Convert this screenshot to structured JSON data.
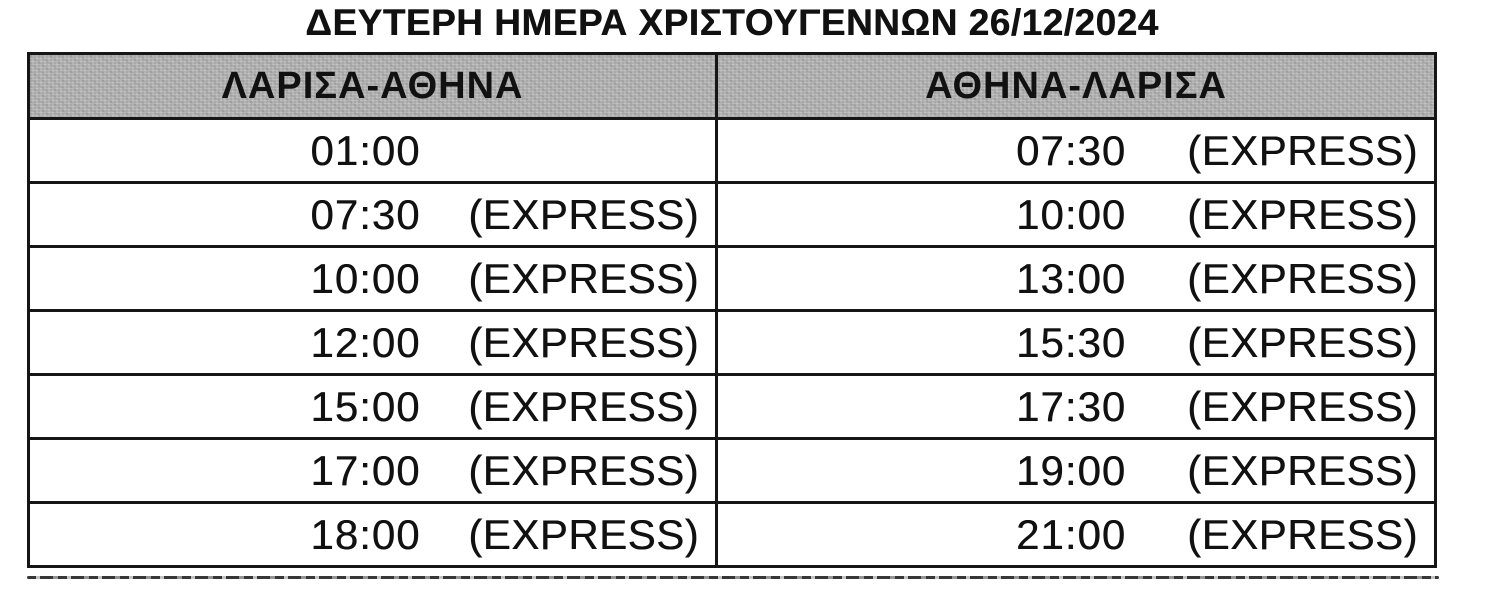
{
  "title": "ΔΕΥΤΕΡΗ ΗΜΕΡΑ ΧΡΙΣΤΟΥΓΕΝΝΩΝ 26/12/2024",
  "table": {
    "columns": [
      {
        "header": "ΛΑΡΙΣΑ-ΑΘΗΝΑ"
      },
      {
        "header": "ΑΘΗΝΑ-ΛΑΡΙΣΑ"
      }
    ],
    "rows": [
      {
        "cells": [
          {
            "time": "01:00",
            "note": ""
          },
          {
            "time": "07:30",
            "note": "(EXPRESS)"
          }
        ]
      },
      {
        "cells": [
          {
            "time": "07:30",
            "note": "(EXPRESS)"
          },
          {
            "time": "10:00",
            "note": "(EXPRESS)"
          }
        ]
      },
      {
        "cells": [
          {
            "time": "10:00",
            "note": "(EXPRESS)"
          },
          {
            "time": "13:00",
            "note": "(EXPRESS)"
          }
        ]
      },
      {
        "cells": [
          {
            "time": "12:00",
            "note": "(EXPRESS)"
          },
          {
            "time": "15:30",
            "note": "(EXPRESS)"
          }
        ]
      },
      {
        "cells": [
          {
            "time": "15:00",
            "note": "(EXPRESS)"
          },
          {
            "time": "17:30",
            "note": "(EXPRESS)"
          }
        ]
      },
      {
        "cells": [
          {
            "time": "17:00",
            "note": "(EXPRESS)"
          },
          {
            "time": "19:00",
            "note": "(EXPRESS)"
          }
        ]
      },
      {
        "cells": [
          {
            "time": "18:00",
            "note": "(EXPRESS)"
          },
          {
            "time": "21:00",
            "note": "(EXPRESS)"
          }
        ]
      }
    ]
  },
  "colors": {
    "header_bg": "#b2b2b2",
    "border": "#161616",
    "text": "#111111"
  }
}
